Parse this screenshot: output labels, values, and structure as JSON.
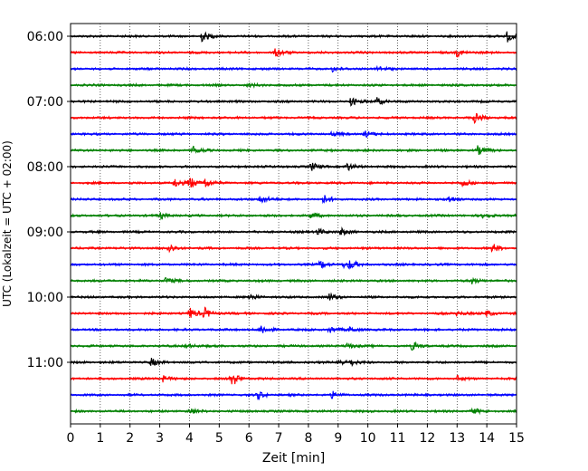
{
  "chart_data": {
    "type": "line",
    "title": "",
    "xlabel": "Zeit  [min]",
    "ylabel": "UTC (Lokalzeit = UTC + 02:00)",
    "xlim": [
      0,
      15
    ],
    "x_ticks": [
      "0",
      "1",
      "2",
      "3",
      "4",
      "5",
      "6",
      "7",
      "8",
      "9",
      "10",
      "11",
      "12",
      "13",
      "14",
      "15"
    ],
    "y_tick_labels": [
      "06:00",
      "07:00",
      "08:00",
      "09:00",
      "10:00",
      "11:00"
    ],
    "grid_x": true,
    "colors": [
      "#000000",
      "#ff0000",
      "#0000ff",
      "#008000"
    ],
    "traces": [
      {
        "start": "06:00",
        "color": "#000000",
        "events": [
          [
            4.4,
            1.0
          ],
          [
            14.7,
            1.0
          ]
        ]
      },
      {
        "start": "06:15",
        "color": "#ff0000",
        "events": [
          [
            6.9,
            0.8
          ],
          [
            13.0,
            0.7
          ]
        ]
      },
      {
        "start": "06:30",
        "color": "#0000ff",
        "events": [
          [
            8.8,
            0.5
          ],
          [
            10.3,
            0.5
          ]
        ]
      },
      {
        "start": "06:45",
        "color": "#008000",
        "events": [
          [
            6.0,
            0.3
          ]
        ]
      },
      {
        "start": "07:00",
        "color": "#000000",
        "events": [
          [
            9.4,
            0.8
          ],
          [
            10.3,
            0.7
          ]
        ]
      },
      {
        "start": "07:15",
        "color": "#ff0000",
        "events": [
          [
            13.6,
            1.0
          ]
        ]
      },
      {
        "start": "07:30",
        "color": "#0000ff",
        "events": [
          [
            8.8,
            0.4
          ],
          [
            9.9,
            0.6
          ]
        ]
      },
      {
        "start": "07:45",
        "color": "#008000",
        "events": [
          [
            4.1,
            0.8
          ],
          [
            13.7,
            0.8
          ]
        ]
      },
      {
        "start": "08:00",
        "color": "#000000",
        "events": [
          [
            8.1,
            0.7
          ],
          [
            9.3,
            0.7
          ]
        ]
      },
      {
        "start": "08:15",
        "color": "#ff0000",
        "events": [
          [
            3.5,
            0.8
          ],
          [
            4.0,
            1.2
          ],
          [
            4.5,
            1.0
          ],
          [
            13.2,
            0.7
          ]
        ]
      },
      {
        "start": "08:30",
        "color": "#0000ff",
        "events": [
          [
            6.4,
            1.0
          ],
          [
            8.5,
            0.8
          ],
          [
            12.7,
            0.6
          ]
        ]
      },
      {
        "start": "08:45",
        "color": "#008000",
        "events": [
          [
            3.0,
            0.6
          ],
          [
            8.1,
            0.5
          ],
          [
            13.9,
            0.6
          ]
        ]
      },
      {
        "start": "09:00",
        "color": "#000000",
        "events": [
          [
            8.3,
            0.7
          ],
          [
            9.1,
            0.6
          ]
        ]
      },
      {
        "start": "09:15",
        "color": "#ff0000",
        "events": [
          [
            3.3,
            0.8
          ],
          [
            14.2,
            0.8
          ]
        ]
      },
      {
        "start": "09:30",
        "color": "#0000ff",
        "events": [
          [
            8.4,
            0.7
          ],
          [
            9.2,
            0.6
          ],
          [
            9.4,
            0.6
          ]
        ]
      },
      {
        "start": "09:45",
        "color": "#008000",
        "events": [
          [
            3.2,
            0.6
          ],
          [
            13.5,
            0.6
          ]
        ]
      },
      {
        "start": "10:00",
        "color": "#000000",
        "events": [
          [
            6.0,
            0.6
          ],
          [
            8.7,
            0.6
          ]
        ]
      },
      {
        "start": "10:15",
        "color": "#ff0000",
        "events": [
          [
            4.0,
            1.0
          ],
          [
            4.5,
            1.0
          ],
          [
            13.0,
            0.5
          ],
          [
            14.0,
            0.5
          ]
        ]
      },
      {
        "start": "10:30",
        "color": "#0000ff",
        "events": [
          [
            6.4,
            1.0
          ],
          [
            8.7,
            0.6
          ],
          [
            9.4,
            0.5
          ]
        ]
      },
      {
        "start": "10:45",
        "color": "#008000",
        "events": [
          [
            3.9,
            0.5
          ],
          [
            9.3,
            0.5
          ],
          [
            11.5,
            0.8
          ]
        ]
      },
      {
        "start": "11:00",
        "color": "#000000",
        "events": [
          [
            2.7,
            0.7
          ],
          [
            9.0,
            0.7
          ],
          [
            9.4,
            0.5
          ]
        ]
      },
      {
        "start": "11:15",
        "color": "#ff0000",
        "events": [
          [
            3.1,
            0.6
          ],
          [
            5.4,
            1.6
          ],
          [
            13.0,
            0.5
          ]
        ]
      },
      {
        "start": "11:30",
        "color": "#0000ff",
        "events": [
          [
            6.3,
            0.7
          ],
          [
            8.8,
            0.6
          ]
        ]
      },
      {
        "start": "11:45",
        "color": "#008000",
        "events": [
          [
            4.0,
            0.6
          ],
          [
            13.5,
            0.6
          ]
        ]
      }
    ]
  }
}
